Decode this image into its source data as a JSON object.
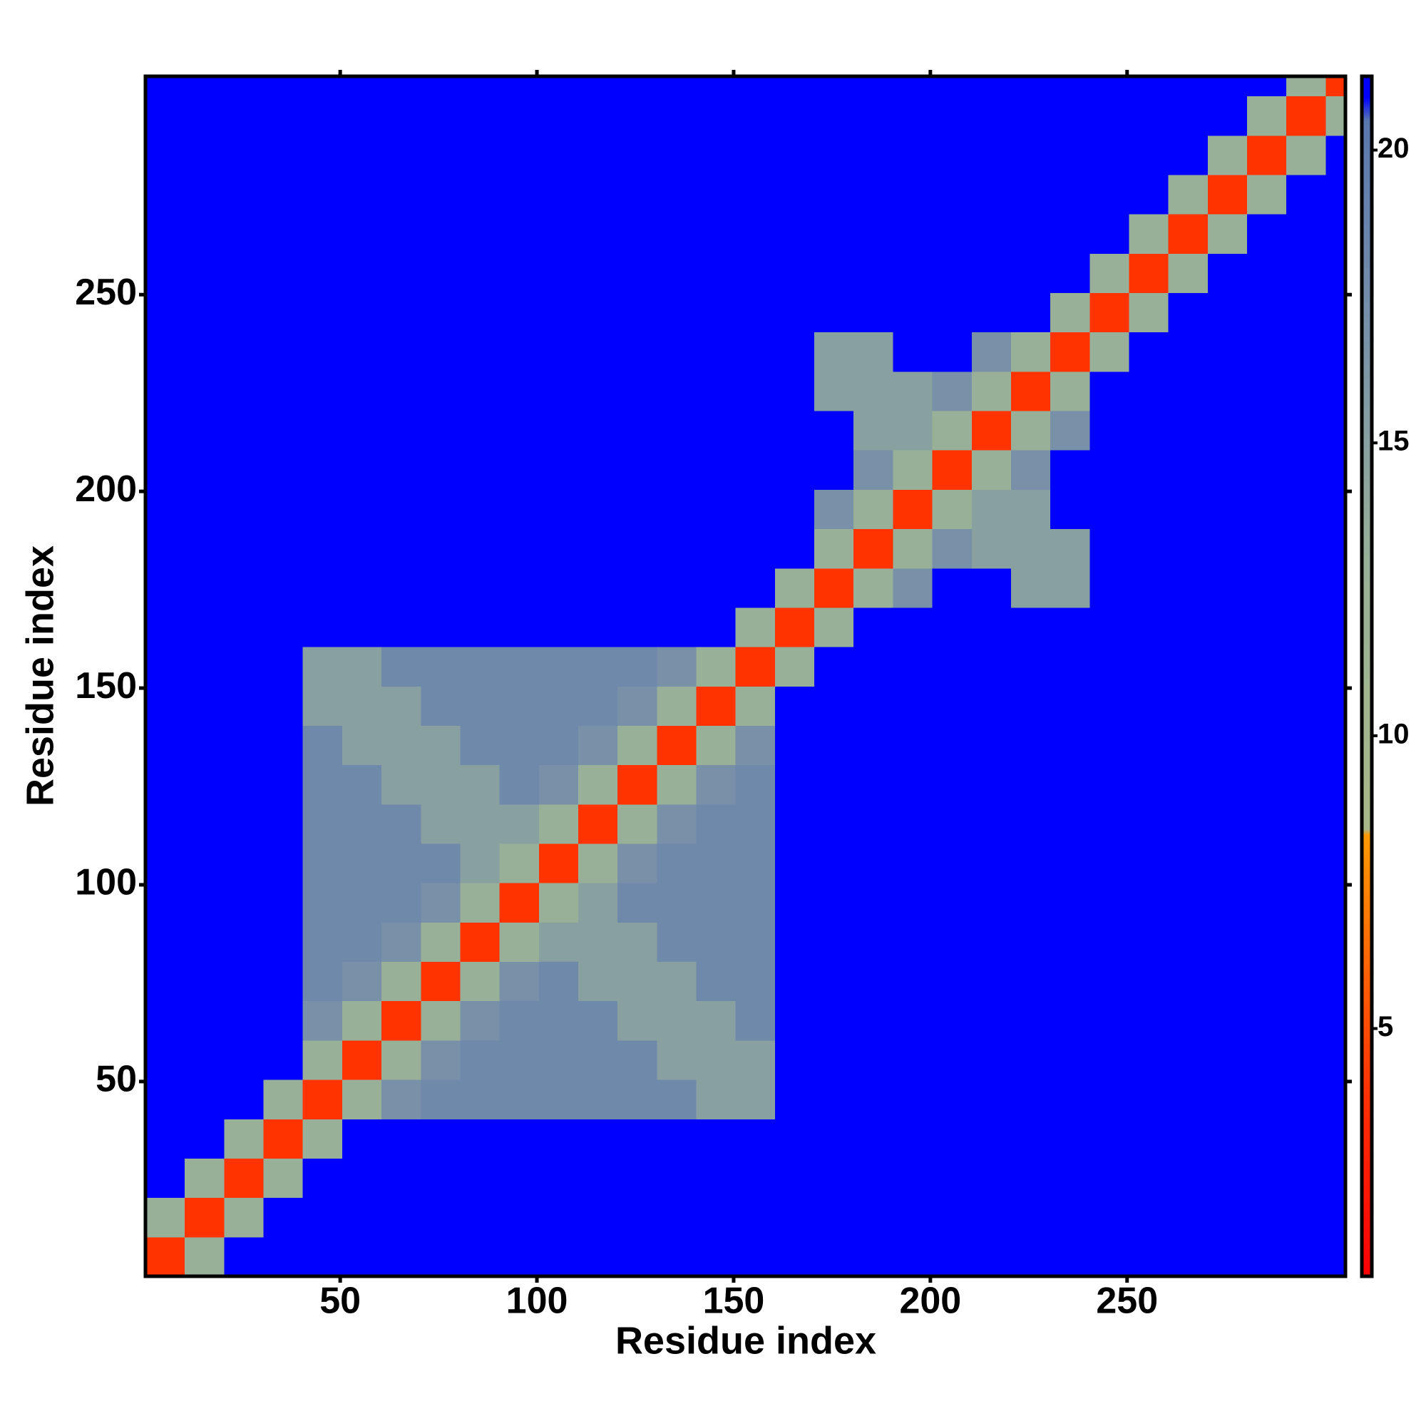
{
  "chart_data": {
    "type": "heatmap",
    "xlabel": "Residue index",
    "ylabel": "Residue index",
    "xlim": [
      0.5,
      305.5
    ],
    "ylim": [
      0.5,
      305.5
    ],
    "xticks": [
      50,
      100,
      150,
      200,
      250
    ],
    "yticks": [
      50,
      100,
      150,
      200,
      250
    ],
    "xbins": [
      0.5,
      10.5,
      20.5,
      30.5,
      40.5,
      50.5,
      60.5,
      70.5,
      80.5,
      90.5,
      100.5,
      110.5,
      120.5,
      130.5,
      140.5,
      150.5,
      160.5,
      170.5,
      180.5,
      190.5,
      200.5,
      210.5,
      220.5,
      230.5,
      240.5,
      250.5,
      260.5,
      270.5,
      280.5,
      290.5,
      300.5,
      305.5
    ],
    "ybins": [
      0.5,
      10.5,
      20.5,
      30.5,
      40.5,
      50.5,
      60.5,
      70.5,
      80.5,
      90.5,
      100.5,
      110.5,
      120.5,
      130.5,
      140.5,
      150.5,
      160.5,
      170.5,
      180.5,
      190.5,
      200.5,
      210.5,
      220.5,
      230.5,
      240.5,
      250.5,
      260.5,
      270.5,
      280.5,
      290.5,
      300.5,
      305.5
    ],
    "zlim": [
      0.77,
      21.26
    ],
    "zticks": [
      5,
      10,
      15,
      20
    ],
    "colorscale": [
      [
        0.77,
        "#ff0000"
      ],
      [
        4,
        "#ff3300"
      ],
      [
        8.3,
        "#ff9900"
      ],
      [
        8.4,
        "#a8b888"
      ],
      [
        13,
        "#98b098"
      ],
      [
        17,
        "#7890a8"
      ],
      [
        20.5,
        "#5a78b0"
      ],
      [
        20.9,
        "#0000ff"
      ],
      [
        21.26,
        "#0000ff"
      ]
    ],
    "z": [
      [
        4,
        13,
        21,
        21,
        21,
        21,
        21,
        21,
        21,
        21,
        21,
        21,
        21,
        21,
        21,
        21,
        21,
        21,
        21,
        21,
        21,
        21,
        21,
        21,
        21,
        21,
        21,
        21,
        21,
        21,
        21
      ],
      [
        13,
        4,
        13,
        21,
        21,
        21,
        21,
        21,
        21,
        21,
        21,
        21,
        21,
        21,
        21,
        21,
        21,
        21,
        21,
        21,
        21,
        21,
        21,
        21,
        21,
        21,
        21,
        21,
        21,
        21,
        21
      ],
      [
        21,
        13,
        4,
        13,
        21,
        21,
        21,
        21,
        21,
        21,
        21,
        21,
        21,
        21,
        21,
        21,
        21,
        21,
        21,
        21,
        21,
        21,
        21,
        21,
        21,
        21,
        21,
        21,
        21,
        21,
        21
      ],
      [
        21,
        21,
        13,
        4,
        13,
        21,
        21,
        21,
        21,
        21,
        21,
        21,
        21,
        21,
        21,
        21,
        21,
        21,
        21,
        21,
        21,
        21,
        21,
        21,
        21,
        21,
        21,
        21,
        21,
        21,
        21
      ],
      [
        21,
        21,
        21,
        13,
        4,
        13,
        17,
        18,
        18,
        18,
        18,
        18,
        18,
        18,
        15,
        15,
        21,
        21,
        21,
        21,
        21,
        21,
        21,
        21,
        21,
        21,
        21,
        21,
        21,
        21,
        21
      ],
      [
        21,
        21,
        21,
        21,
        13,
        4,
        13,
        17,
        18,
        18,
        18,
        18,
        18,
        15,
        15,
        15,
        21,
        21,
        21,
        21,
        21,
        21,
        21,
        21,
        21,
        21,
        21,
        21,
        21,
        21,
        21
      ],
      [
        21,
        21,
        21,
        21,
        17,
        13,
        4,
        13,
        17,
        18,
        18,
        18,
        15,
        15,
        15,
        18,
        21,
        21,
        21,
        21,
        21,
        21,
        21,
        21,
        21,
        21,
        21,
        21,
        21,
        21,
        21
      ],
      [
        21,
        21,
        21,
        21,
        18,
        17,
        13,
        4,
        13,
        17,
        18,
        15,
        15,
        15,
        18,
        18,
        21,
        21,
        21,
        21,
        21,
        21,
        21,
        21,
        21,
        21,
        21,
        21,
        21,
        21,
        21
      ],
      [
        21,
        21,
        21,
        21,
        18,
        18,
        17,
        13,
        4,
        13,
        15,
        15,
        15,
        18,
        18,
        18,
        21,
        21,
        21,
        21,
        21,
        21,
        21,
        21,
        21,
        21,
        21,
        21,
        21,
        21,
        21
      ],
      [
        21,
        21,
        21,
        21,
        18,
        18,
        18,
        17,
        13,
        4,
        13,
        15,
        18,
        18,
        18,
        18,
        21,
        21,
        21,
        21,
        21,
        21,
        21,
        21,
        21,
        21,
        21,
        21,
        21,
        21,
        21
      ],
      [
        21,
        21,
        21,
        21,
        18,
        18,
        18,
        18,
        15,
        13,
        4,
        13,
        17,
        18,
        18,
        18,
        21,
        21,
        21,
        21,
        21,
        21,
        21,
        21,
        21,
        21,
        21,
        21,
        21,
        21,
        21
      ],
      [
        21,
        21,
        21,
        21,
        18,
        18,
        18,
        15,
        15,
        15,
        13,
        4,
        13,
        17,
        18,
        18,
        21,
        21,
        21,
        21,
        21,
        21,
        21,
        21,
        21,
        21,
        21,
        21,
        21,
        21,
        21
      ],
      [
        21,
        21,
        21,
        21,
        18,
        18,
        15,
        15,
        15,
        18,
        17,
        13,
        4,
        13,
        17,
        18,
        21,
        21,
        21,
        21,
        21,
        21,
        21,
        21,
        21,
        21,
        21,
        21,
        21,
        21,
        21
      ],
      [
        21,
        21,
        21,
        21,
        18,
        15,
        15,
        15,
        18,
        18,
        18,
        17,
        13,
        4,
        13,
        17,
        21,
        21,
        21,
        21,
        21,
        21,
        21,
        21,
        21,
        21,
        21,
        21,
        21,
        21,
        21
      ],
      [
        21,
        21,
        21,
        21,
        15,
        15,
        15,
        18,
        18,
        18,
        18,
        18,
        17,
        13,
        4,
        13,
        21,
        21,
        21,
        21,
        21,
        21,
        21,
        21,
        21,
        21,
        21,
        21,
        21,
        21,
        21
      ],
      [
        21,
        21,
        21,
        21,
        15,
        15,
        18,
        18,
        18,
        18,
        18,
        18,
        18,
        17,
        13,
        4,
        13,
        21,
        21,
        21,
        21,
        21,
        21,
        21,
        21,
        21,
        21,
        21,
        21,
        21,
        21
      ],
      [
        21,
        21,
        21,
        21,
        21,
        21,
        21,
        21,
        21,
        21,
        21,
        21,
        21,
        21,
        21,
        13,
        4,
        13,
        21,
        21,
        21,
        21,
        21,
        21,
        21,
        21,
        21,
        21,
        21,
        21,
        21
      ],
      [
        21,
        21,
        21,
        21,
        21,
        21,
        21,
        21,
        21,
        21,
        21,
        21,
        21,
        21,
        21,
        21,
        13,
        4,
        13,
        17,
        21,
        21,
        15,
        15,
        21,
        21,
        21,
        21,
        21,
        21,
        21
      ],
      [
        21,
        21,
        21,
        21,
        21,
        21,
        21,
        21,
        21,
        21,
        21,
        21,
        21,
        21,
        21,
        21,
        21,
        13,
        4,
        13,
        17,
        15,
        15,
        15,
        21,
        21,
        21,
        21,
        21,
        21,
        21
      ],
      [
        21,
        21,
        21,
        21,
        21,
        21,
        21,
        21,
        21,
        21,
        21,
        21,
        21,
        21,
        21,
        21,
        21,
        17,
        13,
        4,
        13,
        15,
        15,
        21,
        21,
        21,
        21,
        21,
        21,
        21,
        21
      ],
      [
        21,
        21,
        21,
        21,
        21,
        21,
        21,
        21,
        21,
        21,
        21,
        21,
        21,
        21,
        21,
        21,
        21,
        21,
        17,
        13,
        4,
        13,
        17,
        21,
        21,
        21,
        21,
        21,
        21,
        21,
        21
      ],
      [
        21,
        21,
        21,
        21,
        21,
        21,
        21,
        21,
        21,
        21,
        21,
        21,
        21,
        21,
        21,
        21,
        21,
        21,
        15,
        15,
        13,
        4,
        13,
        17,
        21,
        21,
        21,
        21,
        21,
        21,
        21
      ],
      [
        21,
        21,
        21,
        21,
        21,
        21,
        21,
        21,
        21,
        21,
        21,
        21,
        21,
        21,
        21,
        21,
        21,
        15,
        15,
        15,
        17,
        13,
        4,
        13,
        21,
        21,
        21,
        21,
        21,
        21,
        21
      ],
      [
        21,
        21,
        21,
        21,
        21,
        21,
        21,
        21,
        21,
        21,
        21,
        21,
        21,
        21,
        21,
        21,
        21,
        15,
        15,
        21,
        21,
        17,
        13,
        4,
        13,
        21,
        21,
        21,
        21,
        21,
        21
      ],
      [
        21,
        21,
        21,
        21,
        21,
        21,
        21,
        21,
        21,
        21,
        21,
        21,
        21,
        21,
        21,
        21,
        21,
        21,
        21,
        21,
        21,
        21,
        21,
        13,
        4,
        13,
        21,
        21,
        21,
        21,
        21
      ],
      [
        21,
        21,
        21,
        21,
        21,
        21,
        21,
        21,
        21,
        21,
        21,
        21,
        21,
        21,
        21,
        21,
        21,
        21,
        21,
        21,
        21,
        21,
        21,
        21,
        13,
        4,
        13,
        21,
        21,
        21,
        21
      ],
      [
        21,
        21,
        21,
        21,
        21,
        21,
        21,
        21,
        21,
        21,
        21,
        21,
        21,
        21,
        21,
        21,
        21,
        21,
        21,
        21,
        21,
        21,
        21,
        21,
        21,
        13,
        4,
        13,
        21,
        21,
        21
      ],
      [
        21,
        21,
        21,
        21,
        21,
        21,
        21,
        21,
        21,
        21,
        21,
        21,
        21,
        21,
        21,
        21,
        21,
        21,
        21,
        21,
        21,
        21,
        21,
        21,
        21,
        21,
        13,
        4,
        13,
        21,
        21
      ],
      [
        21,
        21,
        21,
        21,
        21,
        21,
        21,
        21,
        21,
        21,
        21,
        21,
        21,
        21,
        21,
        21,
        21,
        21,
        21,
        21,
        21,
        21,
        21,
        21,
        21,
        21,
        21,
        13,
        4,
        13,
        21
      ],
      [
        21,
        21,
        21,
        21,
        21,
        21,
        21,
        21,
        21,
        21,
        21,
        21,
        21,
        21,
        21,
        21,
        21,
        21,
        21,
        21,
        21,
        21,
        21,
        21,
        21,
        21,
        21,
        21,
        13,
        4,
        13
      ],
      [
        21,
        21,
        21,
        21,
        21,
        21,
        21,
        21,
        21,
        21,
        21,
        21,
        21,
        21,
        21,
        21,
        21,
        21,
        21,
        21,
        21,
        21,
        21,
        21,
        21,
        21,
        21,
        21,
        21,
        13,
        4
      ]
    ]
  }
}
